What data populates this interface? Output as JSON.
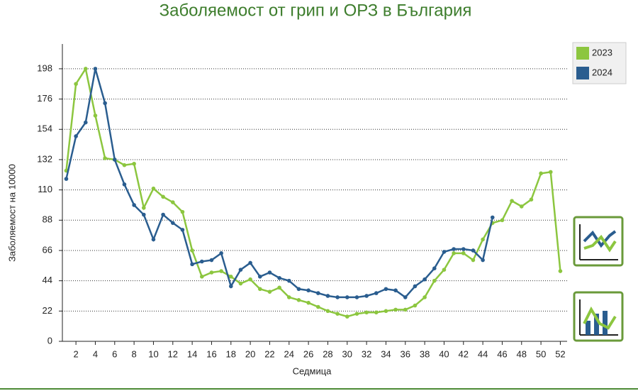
{
  "chart_data": {
    "type": "line",
    "title": "Заболяемост от грип и ОРЗ в България",
    "xlabel": "Седмица",
    "ylabel": "Заболяемост на 10000",
    "xlim": [
      0.6,
      52.7
    ],
    "xticks": [
      2,
      4,
      6,
      8,
      10,
      12,
      14,
      16,
      18,
      20,
      22,
      24,
      26,
      28,
      30,
      32,
      34,
      36,
      38,
      40,
      42,
      44,
      46,
      48,
      50,
      52
    ],
    "ylim": [
      0,
      216
    ],
    "yticks": [
      0,
      22,
      44,
      66,
      88,
      110,
      132,
      154,
      176,
      198
    ],
    "grid": true,
    "legend": "upper right",
    "series": [
      {
        "name": "2023",
        "color": "#8cc63f",
        "x": [
          1,
          2,
          3,
          4,
          5,
          6,
          7,
          8,
          9,
          10,
          11,
          12,
          13,
          14,
          15,
          16,
          17,
          18,
          19,
          20,
          21,
          22,
          23,
          24,
          25,
          26,
          27,
          28,
          29,
          30,
          31,
          32,
          33,
          34,
          35,
          36,
          37,
          38,
          39,
          40,
          41,
          42,
          43,
          44,
          45,
          46,
          47,
          48,
          49,
          50,
          51,
          52
        ],
        "values": [
          124,
          187,
          198,
          164,
          133,
          132,
          128,
          129,
          97,
          111,
          105,
          101,
          94,
          66,
          47,
          50,
          51,
          47,
          42,
          45,
          38,
          36,
          39,
          32,
          30,
          28,
          25,
          22,
          20,
          18,
          20,
          21,
          21,
          22,
          23,
          23,
          26,
          32,
          44,
          52,
          64,
          64,
          59,
          74,
          86,
          88,
          102,
          98,
          103,
          122,
          123,
          51
        ]
      },
      {
        "name": "2024",
        "color": "#2a5d8f",
        "x": [
          1,
          2,
          3,
          4,
          5,
          6,
          7,
          8,
          9,
          10,
          11,
          12,
          13,
          14,
          15,
          16,
          17,
          18,
          19,
          20,
          21,
          22,
          23,
          24,
          25,
          26,
          27,
          28,
          29,
          30,
          31,
          32,
          33,
          34,
          35,
          36,
          37,
          38,
          39,
          40,
          41,
          42,
          43,
          44,
          45
        ],
        "values": [
          118,
          149,
          159,
          198,
          173,
          132,
          114,
          99,
          92,
          74,
          92,
          86,
          81,
          56,
          58,
          59,
          64,
          40,
          52,
          57,
          47,
          50,
          46,
          44,
          38,
          37,
          35,
          33,
          32,
          32,
          32,
          33,
          35,
          38,
          37,
          32,
          40,
          45,
          53,
          65,
          67,
          67,
          66,
          59,
          90
        ]
      }
    ]
  }
}
